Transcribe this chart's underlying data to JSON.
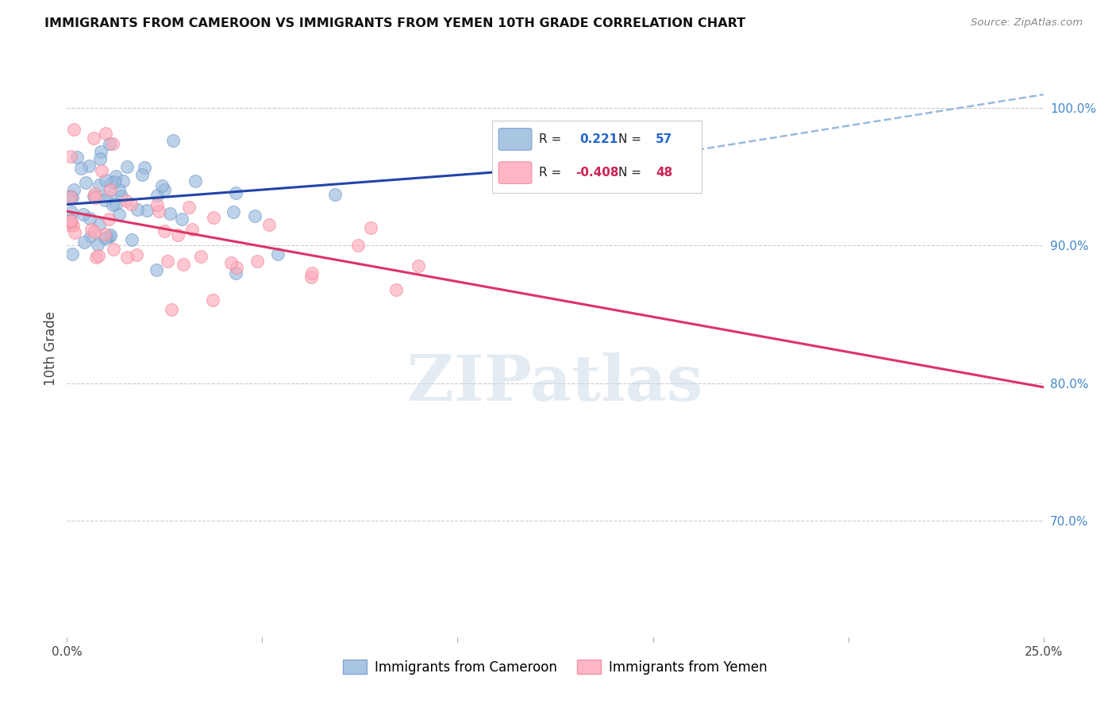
{
  "title": "IMMIGRANTS FROM CAMEROON VS IMMIGRANTS FROM YEMEN 10TH GRADE CORRELATION CHART",
  "source": "Source: ZipAtlas.com",
  "ylabel": "10th Grade",
  "xlim": [
    0.0,
    0.25
  ],
  "ylim": [
    0.615,
    1.035
  ],
  "yticks": [
    0.7,
    0.8,
    0.9,
    1.0
  ],
  "ytick_labels": [
    "70.0%",
    "80.0%",
    "90.0%",
    "100.0%"
  ],
  "background_color": "#ffffff",
  "grid_color": "#cccccc",
  "blue_color": "#99bbdd",
  "pink_color": "#ffaabb",
  "blue_edge_color": "#7799cc",
  "pink_edge_color": "#ee8899",
  "blue_line_color": "#2244aa",
  "pink_line_color": "#dd3366",
  "dashed_line_color": "#99bbdd",
  "legend_R_blue": "0.221",
  "legend_N_blue": "57",
  "legend_R_pink": "-0.408",
  "legend_N_pink": "48",
  "blue_line_x0": 0.0,
  "blue_line_x1": 0.14,
  "blue_line_y0": 0.93,
  "blue_line_y1": 0.96,
  "dash_line_x0": 0.14,
  "dash_line_x1": 0.25,
  "dash_line_y0": 0.96,
  "dash_line_y1": 1.01,
  "pink_line_x0": 0.0,
  "pink_line_x1": 0.25,
  "pink_line_y0": 0.925,
  "pink_line_y1": 0.797,
  "watermark": "ZIPatlas",
  "watermark_color": "#c5d5e5",
  "watermark_alpha": 0.45,
  "marker_size": 130
}
